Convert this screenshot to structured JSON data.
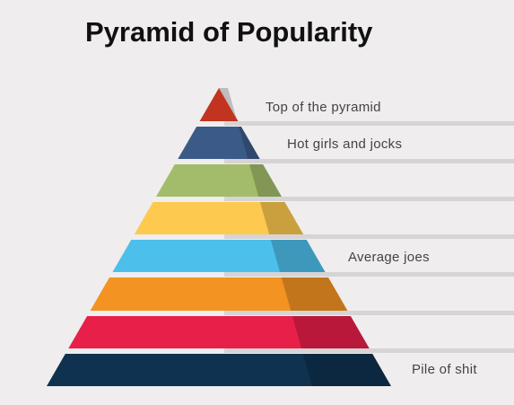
{
  "title": "Pyramid of Popularity",
  "levels": [
    {
      "label": "Top of the pyramid",
      "color": "#c1341f"
    },
    {
      "label": "Hot girls and jocks",
      "color": "#3b5a87"
    },
    {
      "label": "",
      "color": "#a3bc6b"
    },
    {
      "label": "",
      "color": "#fdc94f"
    },
    {
      "label": "Average joes",
      "color": "#4dbfeb"
    },
    {
      "label": "",
      "color": "#f39322"
    },
    {
      "label": "",
      "color": "#e81f49"
    },
    {
      "label": "Pile of shit",
      "color": "#0e3250"
    }
  ]
}
